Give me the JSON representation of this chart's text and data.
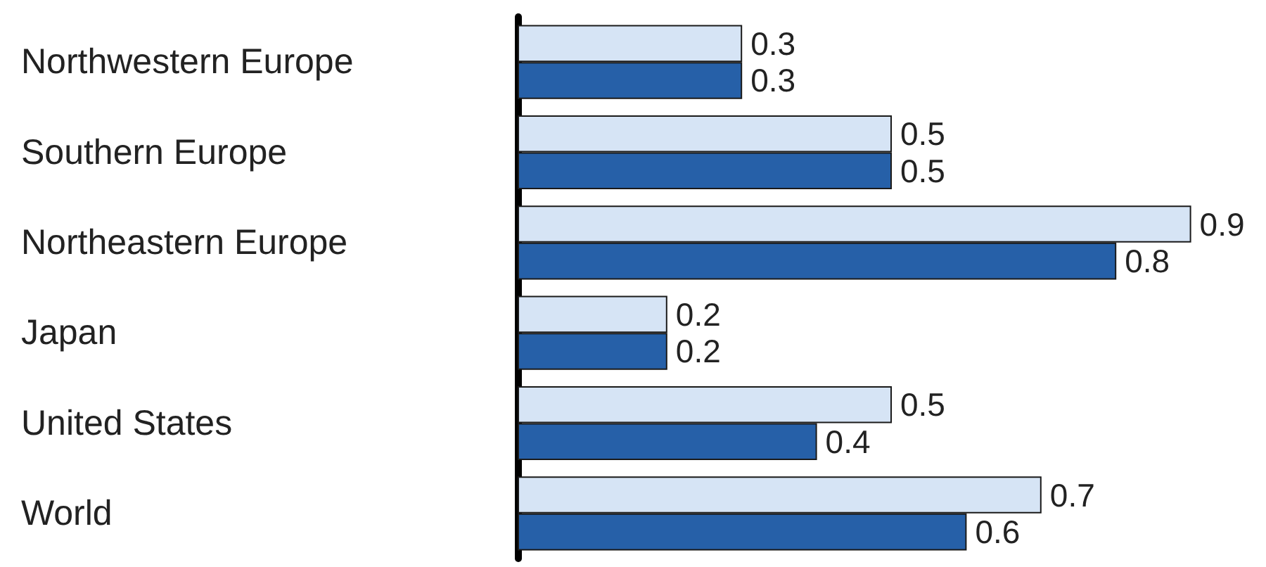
{
  "chart_data": {
    "type": "bar",
    "orientation": "horizontal",
    "categories": [
      "Northwestern Europe",
      "Southern Europe",
      "Northeastern Europe",
      "Japan",
      "United States",
      "World"
    ],
    "series": [
      {
        "color": "#d6e4f5",
        "values": [
          0.3,
          0.5,
          0.9,
          0.2,
          0.5,
          0.7
        ]
      },
      {
        "color": "#2660a8",
        "values": [
          0.3,
          0.5,
          0.8,
          0.2,
          0.4,
          0.6
        ]
      }
    ],
    "xlim": [
      0,
      1
    ],
    "data_labels": true
  }
}
